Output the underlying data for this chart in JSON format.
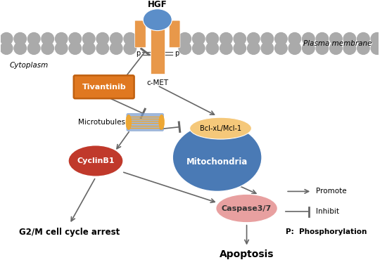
{
  "bg_color": "#ffffff",
  "membrane_color": "#aaaaaa",
  "hgf_label": "HGF",
  "cmet_label": "c-MET",
  "plasma_label": "Plasma membrane",
  "cyto_label": "Cytoplasm",
  "tivantinib_label": "Tivantinib",
  "tivantinib_fill": "#e07820",
  "tivantinib_edge": "#c06010",
  "microtubules_label": "Microtubules",
  "microtubule_blue": "#7799cc",
  "microtubule_orange": "#f5a623",
  "mitochondria_label": "Mitochondria",
  "mitochondria_color": "#4a7ab5",
  "bcl_label": "Bcl-xL/Mcl-1",
  "bcl_color": "#f5c87a",
  "cyclinb1_label": "CyclinB1",
  "cyclinb1_color": "#c0392b",
  "caspase_label": "Caspase3/7",
  "caspase_color": "#e8a0a0",
  "g2m_label": "G2/M cell cycle arrest",
  "apoptosis_label": "Apoptosis",
  "receptor_color": "#e8984a",
  "hgf_color": "#5b8ec9",
  "arrow_color": "#666666",
  "legend_promote": "Promote",
  "legend_inhibit": "Inhibit",
  "legend_phospho": "P:  Phosphorylation"
}
